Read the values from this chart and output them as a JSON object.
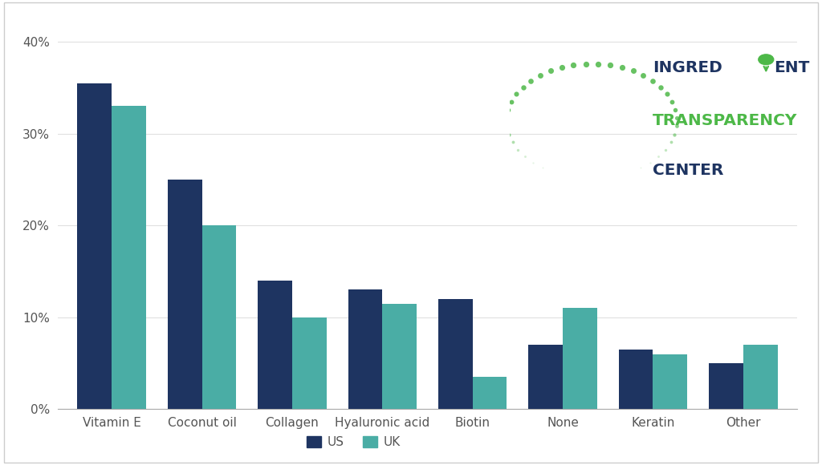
{
  "categories": [
    "Vitamin E",
    "Coconut oil",
    "Collagen",
    "Hyaluronic acid",
    "Biotin",
    "None",
    "Keratin",
    "Other"
  ],
  "us_values": [
    35.5,
    25.0,
    14.0,
    13.0,
    12.0,
    7.0,
    6.5,
    5.0
  ],
  "uk_values": [
    33.0,
    20.0,
    10.0,
    11.5,
    3.5,
    11.0,
    6.0,
    7.0
  ],
  "us_color": "#1e3461",
  "uk_color": "#4aada5",
  "background_color": "#ffffff",
  "border_color": "#cccccc",
  "yticks": [
    0,
    10,
    20,
    30,
    40
  ],
  "ylim": [
    0,
    42
  ],
  "bar_width": 0.38,
  "legend_us": "US",
  "legend_uk": "UK",
  "tick_label_color": "#555555",
  "font_size_ticks": 11,
  "font_size_legend": 11,
  "dark_navy": "#1e3461",
  "green_color": "#4db848"
}
